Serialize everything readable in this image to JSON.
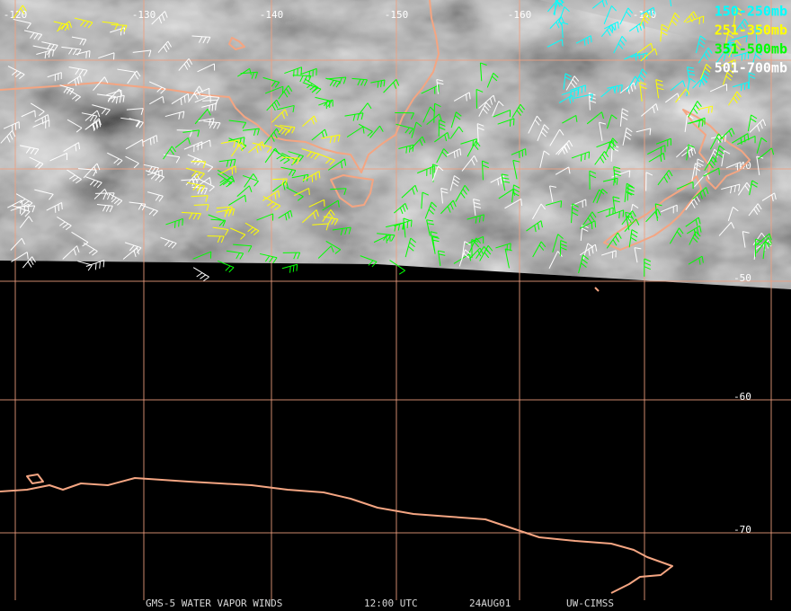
{
  "map": {
    "longitudes": [
      "-120",
      "-130",
      "-140",
      "-150",
      "-160",
      "-170"
    ],
    "latitudes": [
      "-40",
      "-50",
      "-60",
      "-70"
    ],
    "legend": [
      {
        "name": "150-250mb",
        "color": "#00ffff"
      },
      {
        "name": "251-350mb",
        "color": "#ffff00"
      },
      {
        "name": "351-500mb",
        "color": "#00ff00"
      },
      {
        "name": "501-700mb",
        "color": "#ffffff"
      }
    ],
    "footer": [
      "GMS-5 WATER VAPOR WINDS",
      "12:00 UTC",
      "24AUG01",
      "UW-CIMSS"
    ]
  }
}
